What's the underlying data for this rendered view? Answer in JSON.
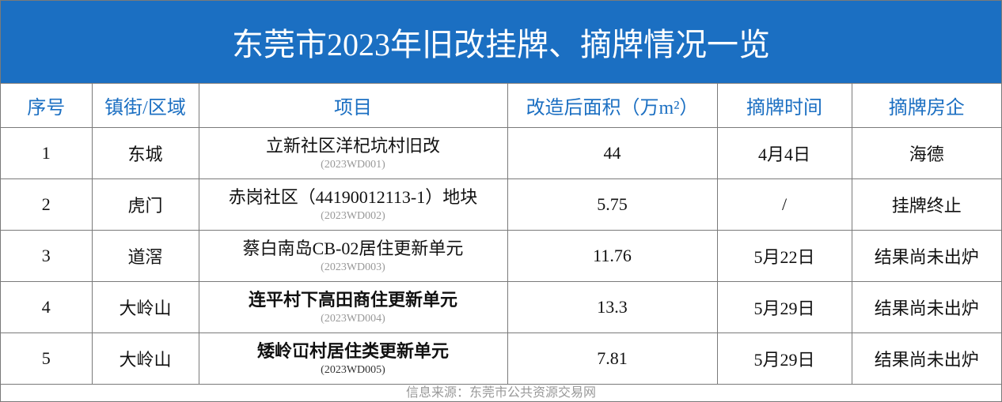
{
  "header": {
    "title": "东莞市2023年旧改挂牌、摘牌情况一览"
  },
  "table": {
    "columns": [
      "序号",
      "镇街/区域",
      "项目",
      "改造后面积（万m²）",
      "摘牌时间",
      "摘牌房企"
    ],
    "rows": [
      {
        "no": "1",
        "town": "东城",
        "project": "立新社区洋杞坑村旧改",
        "code": "(2023WD001)",
        "area": "44",
        "date": "4月4日",
        "company": "海德"
      },
      {
        "no": "2",
        "town": "虎门",
        "project": "赤岗社区（44190012113-1）地块",
        "code": "(2023WD002)",
        "area": "5.75",
        "date": "/",
        "company": "挂牌终止"
      },
      {
        "no": "3",
        "town": "道滘",
        "project": "蔡白南岛CB-02居住更新单元",
        "code": "(2023WD003)",
        "area": "11.76",
        "date": "5月22日",
        "company": "结果尚未出炉"
      },
      {
        "no": "4",
        "town": "大岭山",
        "project": "连平村下高田商住更新单元",
        "code": "(2023WD004)",
        "area": "13.3",
        "date": "5月29日",
        "company": "结果尚未出炉"
      },
      {
        "no": "5",
        "town": "大岭山",
        "project": "矮岭冚村居住类更新单元",
        "code": "(2023WD005)",
        "area": "7.81",
        "date": "5月29日",
        "company": "结果尚未出炉"
      }
    ]
  },
  "source": "信息来源：东莞市公共资源交易网"
}
